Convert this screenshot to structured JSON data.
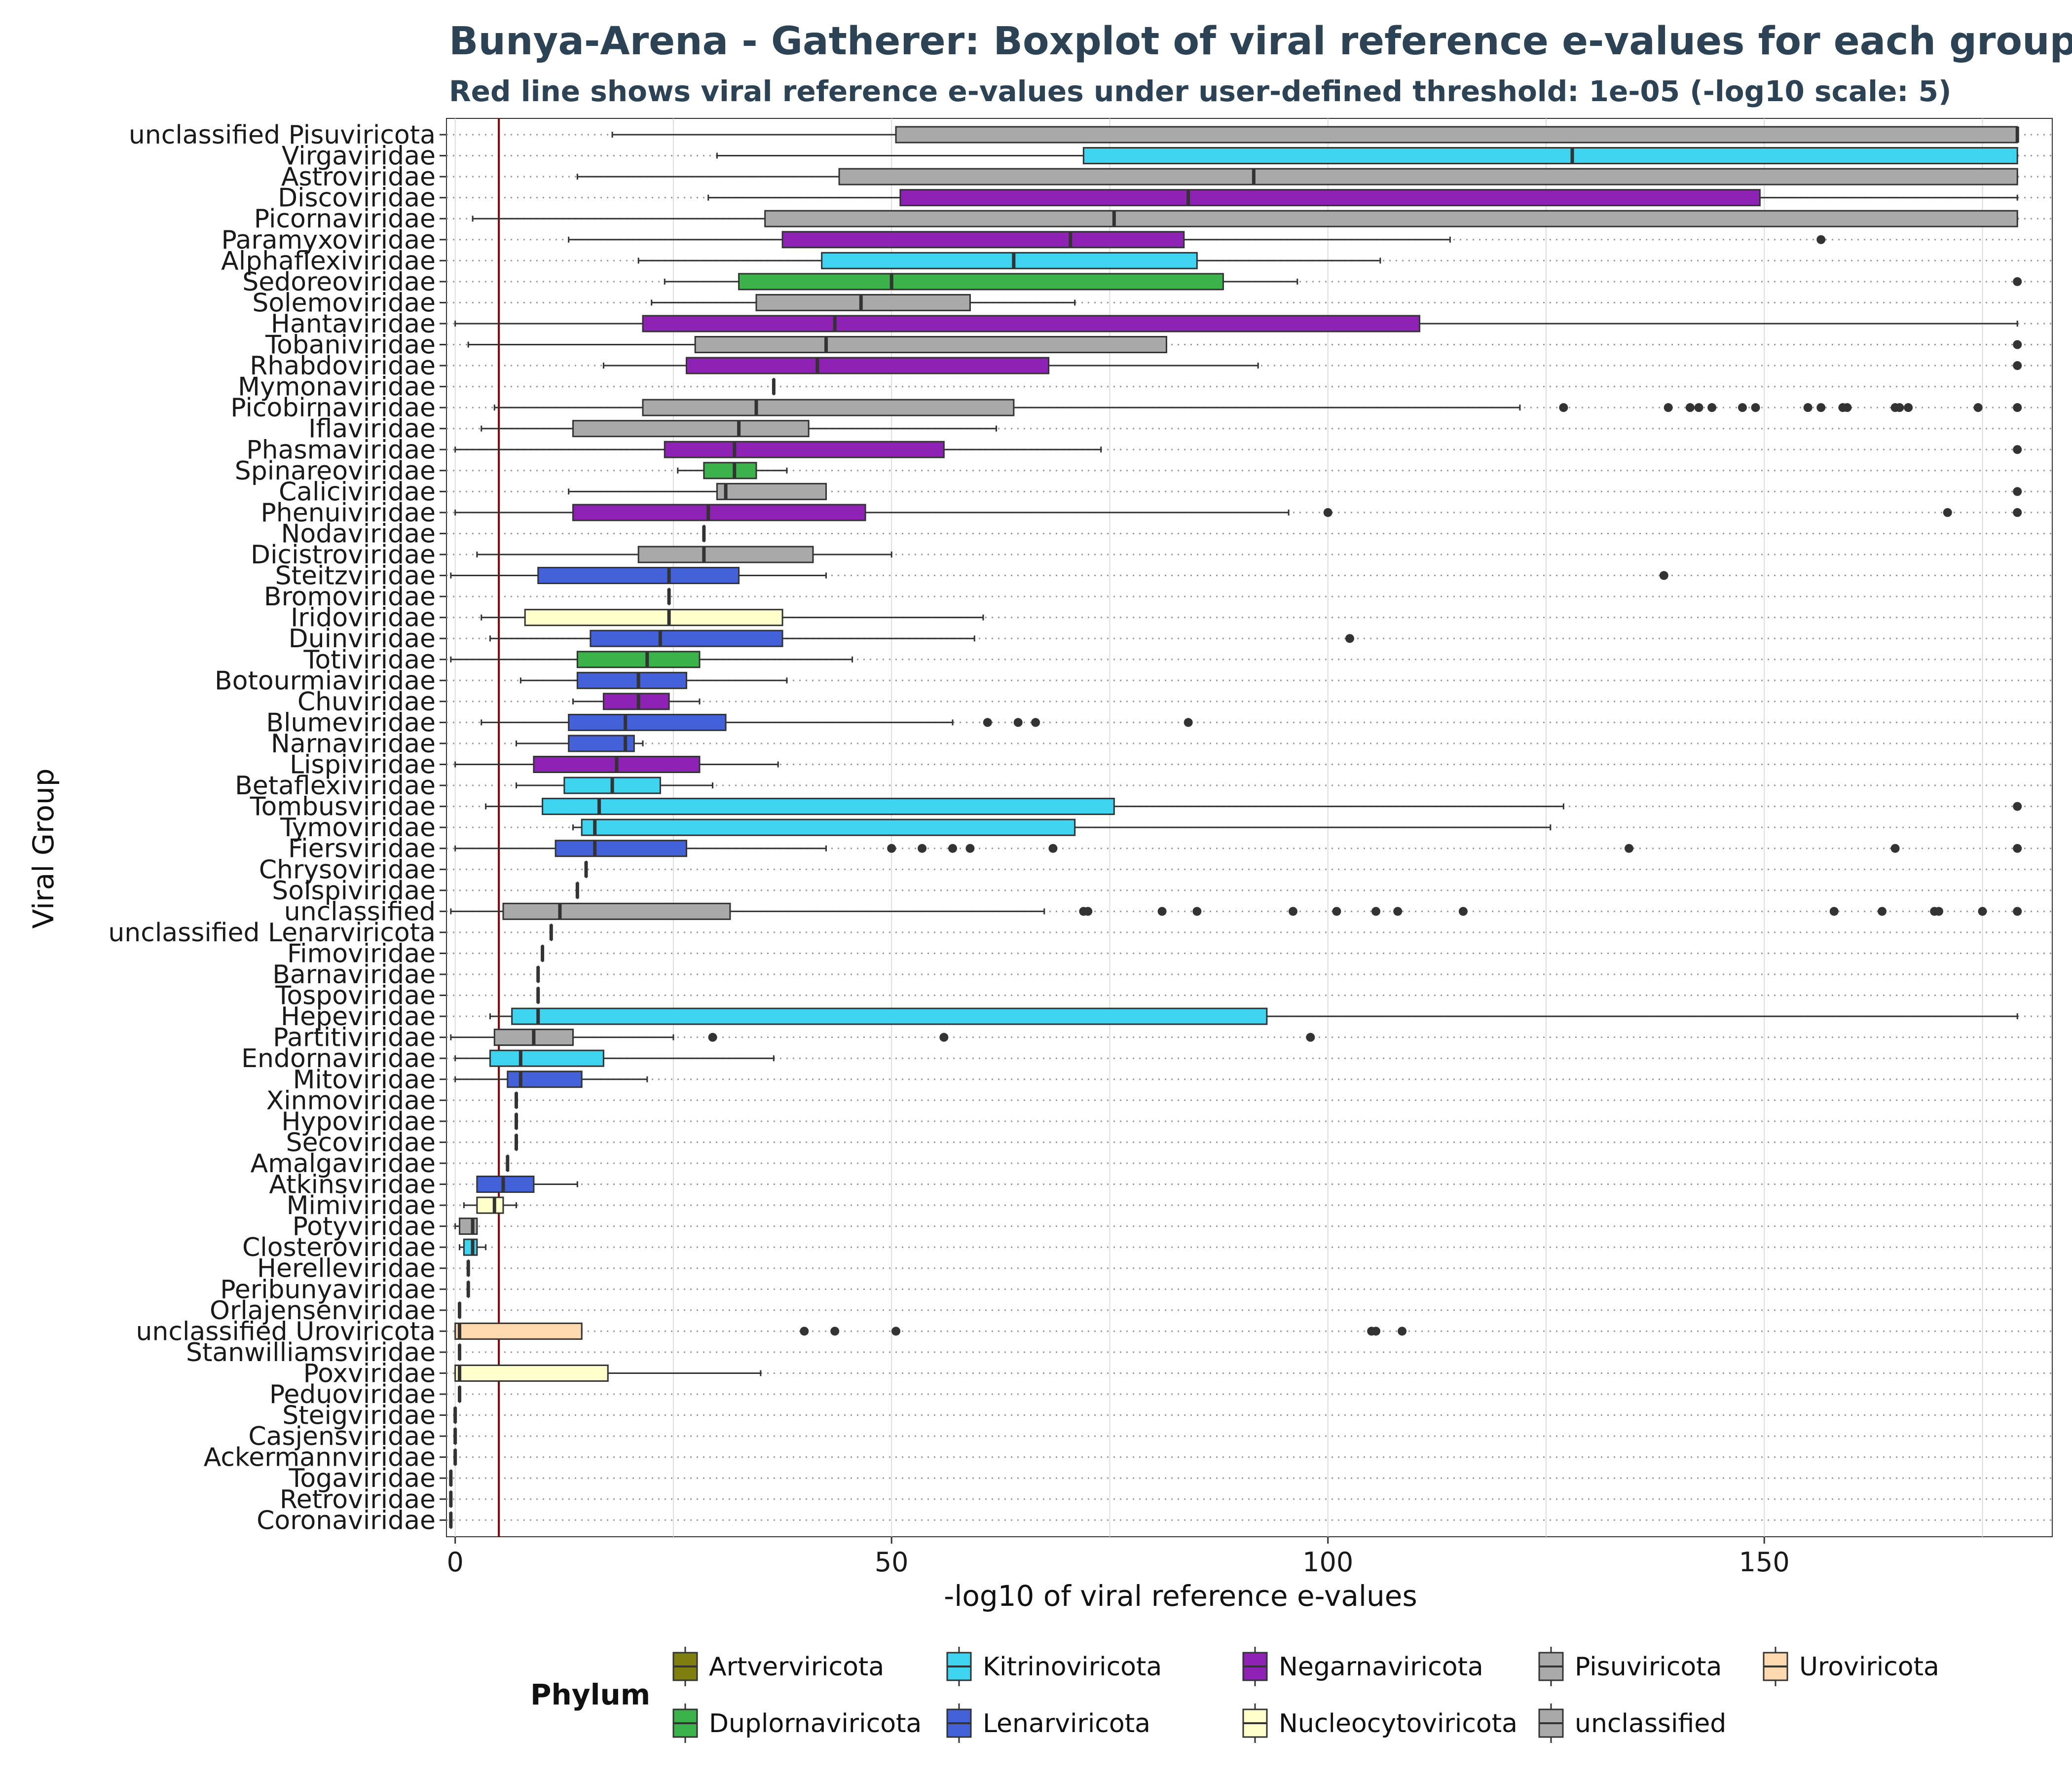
{
  "chart_data": {
    "type": "boxplot",
    "title": "Bunya-Arena - Gatherer: Boxplot of viral reference e-values for each group",
    "subtitle": "Red line shows viral reference e-values under user-defined threshold: 1e-05 (-log10 scale: 5)",
    "xlabel": "-log10 of viral reference e-values",
    "ylabel": "Viral Group",
    "xlim": [
      -1,
      183
    ],
    "x_ticks": [
      0,
      50,
      100,
      150
    ],
    "x_tick_labels": [
      "0",
      "50",
      "100",
      "150"
    ],
    "threshold": 5,
    "grid": true,
    "legend": {
      "title": "Phylum",
      "position": "bottom",
      "entries": [
        {
          "name": "Artverviricota",
          "color": "#7f7f0f"
        },
        {
          "name": "Duplornaviricota",
          "color": "#3cb34a"
        },
        {
          "name": "Kitrinoviricota",
          "color": "#3ed3ef"
        },
        {
          "name": "Lenarviricota",
          "color": "#4361d8"
        },
        {
          "name": "Negarnaviricota",
          "color": "#8e22b4"
        },
        {
          "name": "Nucleocytoviricota",
          "color": "#ffffcc"
        },
        {
          "name": "Pisuviricota",
          "color": "#a9a9a9"
        },
        {
          "name": "unclassified",
          "color": "#a9a9a9"
        },
        {
          "name": "Uroviricota",
          "color": "#ffdab0"
        }
      ]
    },
    "groups": [
      {
        "name": "unclassified Pisuviricota",
        "phylum": "Pisuviricota",
        "min": 18,
        "q1": 50.5,
        "median": 179,
        "q3": 179,
        "max": 179,
        "outliers": []
      },
      {
        "name": "Virgaviridae",
        "phylum": "Kitrinoviricota",
        "min": 30,
        "q1": 72,
        "median": 128,
        "q3": 179,
        "max": 179,
        "outliers": []
      },
      {
        "name": "Astroviridae",
        "phylum": "Pisuviricota",
        "min": 14,
        "q1": 44,
        "median": 91.5,
        "q3": 179,
        "max": 179,
        "outliers": []
      },
      {
        "name": "Discoviridae",
        "phylum": "Negarnaviricota",
        "min": 29,
        "q1": 51,
        "median": 84,
        "q3": 149.5,
        "max": 179,
        "outliers": []
      },
      {
        "name": "Picornaviridae",
        "phylum": "Pisuviricota",
        "min": 2,
        "q1": 35.5,
        "median": 75.5,
        "q3": 179,
        "max": 179,
        "outliers": []
      },
      {
        "name": "Paramyxoviridae",
        "phylum": "Negarnaviricota",
        "min": 13,
        "q1": 37.5,
        "median": 70.5,
        "q3": 83.5,
        "max": 114,
        "outliers": [
          156.5
        ]
      },
      {
        "name": "Alphaflexiviridae",
        "phylum": "Kitrinoviricota",
        "min": 21,
        "q1": 42,
        "median": 64,
        "q3": 85,
        "max": 106,
        "outliers": []
      },
      {
        "name": "Sedoreoviridae",
        "phylum": "Duplornaviricota",
        "min": 24,
        "q1": 32.5,
        "median": 50,
        "q3": 88,
        "max": 96.5,
        "outliers": [
          179
        ]
      },
      {
        "name": "Solemoviridae",
        "phylum": "Pisuviricota",
        "min": 22.5,
        "q1": 34.5,
        "median": 46.5,
        "q3": 59,
        "max": 71,
        "outliers": []
      },
      {
        "name": "Hantaviridae",
        "phylum": "Negarnaviricota",
        "min": 0,
        "q1": 21.5,
        "median": 43.5,
        "q3": 110.5,
        "max": 179,
        "outliers": []
      },
      {
        "name": "Tobaniviridae",
        "phylum": "Pisuviricota",
        "min": 1.5,
        "q1": 27.5,
        "median": 42.5,
        "q3": 81.5,
        "max": 81.5,
        "outliers": [
          179
        ]
      },
      {
        "name": "Rhabdoviridae",
        "phylum": "Negarnaviricota",
        "min": 17,
        "q1": 26.5,
        "median": 41.5,
        "q3": 68,
        "max": 92,
        "outliers": [
          179
        ]
      },
      {
        "name": "Mymonaviridae",
        "phylum": "Negarnaviricota",
        "min": 36.5,
        "q1": 36.5,
        "median": 36.5,
        "q3": 36.5,
        "max": 36.5,
        "outliers": []
      },
      {
        "name": "Picobirnaviridae",
        "phylum": "Pisuviricota",
        "min": 4.5,
        "q1": 21.5,
        "median": 34.5,
        "q3": 64,
        "max": 122,
        "outliers": [
          127,
          139,
          141.5,
          142.5,
          144,
          147.5,
          149,
          155,
          156.5,
          159,
          159.5,
          165,
          165.5,
          166.5,
          174.5,
          179
        ]
      },
      {
        "name": "Iflaviridae",
        "phylum": "Pisuviricota",
        "min": 3,
        "q1": 13.5,
        "median": 32.5,
        "q3": 40.5,
        "max": 62,
        "outliers": []
      },
      {
        "name": "Phasmaviridae",
        "phylum": "Negarnaviricota",
        "min": 0,
        "q1": 24,
        "median": 32,
        "q3": 56,
        "max": 74,
        "outliers": [
          179
        ]
      },
      {
        "name": "Spinareoviridae",
        "phylum": "Duplornaviricota",
        "min": 25.5,
        "q1": 28.5,
        "median": 32,
        "q3": 34.5,
        "max": 38,
        "outliers": []
      },
      {
        "name": "Caliciviridae",
        "phylum": "Pisuviricota",
        "min": 13,
        "q1": 30,
        "median": 31,
        "q3": 42.5,
        "max": 42.5,
        "outliers": [
          179
        ]
      },
      {
        "name": "Phenuiviridae",
        "phylum": "Negarnaviricota",
        "min": 0,
        "q1": 13.5,
        "median": 29,
        "q3": 47,
        "max": 95.5,
        "outliers": [
          100,
          171,
          179
        ]
      },
      {
        "name": "Nodaviridae",
        "phylum": "Kitrinoviricota",
        "min": 28.5,
        "q1": 28.5,
        "median": 28.5,
        "q3": 28.5,
        "max": 28.5,
        "outliers": []
      },
      {
        "name": "Dicistroviridae",
        "phylum": "Pisuviricota",
        "min": 2.5,
        "q1": 21,
        "median": 28.5,
        "q3": 41,
        "max": 50,
        "outliers": []
      },
      {
        "name": "Steitzviridae",
        "phylum": "Lenarviricota",
        "min": -0.5,
        "q1": 9.5,
        "median": 24.5,
        "q3": 32.5,
        "max": 42.5,
        "outliers": [
          138.5
        ]
      },
      {
        "name": "Bromoviridae",
        "phylum": "Kitrinoviricota",
        "min": 24.5,
        "q1": 24.5,
        "median": 24.5,
        "q3": 24.5,
        "max": 24.5,
        "outliers": []
      },
      {
        "name": "Iridoviridae",
        "phylum": "Nucleocytoviricota",
        "min": 3,
        "q1": 8,
        "median": 24.5,
        "q3": 37.5,
        "max": 60.5,
        "outliers": []
      },
      {
        "name": "Duinviridae",
        "phylum": "Lenarviricota",
        "min": 4,
        "q1": 15.5,
        "median": 23.5,
        "q3": 37.5,
        "max": 59.5,
        "outliers": [
          102.5
        ]
      },
      {
        "name": "Totiviridae",
        "phylum": "Duplornaviricota",
        "min": -0.5,
        "q1": 14,
        "median": 22,
        "q3": 28,
        "max": 45.5,
        "outliers": []
      },
      {
        "name": "Botourmiaviridae",
        "phylum": "Lenarviricota",
        "min": 7.5,
        "q1": 14,
        "median": 21,
        "q3": 26.5,
        "max": 38,
        "outliers": []
      },
      {
        "name": "Chuviridae",
        "phylum": "Negarnaviricota",
        "min": 13.5,
        "q1": 17,
        "median": 21,
        "q3": 24.5,
        "max": 28,
        "outliers": []
      },
      {
        "name": "Blumeviridae",
        "phylum": "Lenarviricota",
        "min": 3,
        "q1": 13,
        "median": 19.5,
        "q3": 31,
        "max": 57,
        "outliers": [
          61,
          64.5,
          66.5,
          84
        ]
      },
      {
        "name": "Narnaviridae",
        "phylum": "Lenarviricota",
        "min": 7,
        "q1": 13,
        "median": 19.5,
        "q3": 20.5,
        "max": 21.5,
        "outliers": []
      },
      {
        "name": "Lispiviridae",
        "phylum": "Negarnaviricota",
        "min": 0,
        "q1": 9,
        "median": 18.5,
        "q3": 28,
        "max": 37,
        "outliers": []
      },
      {
        "name": "Betaflexiviridae",
        "phylum": "Kitrinoviricota",
        "min": 7,
        "q1": 12.5,
        "median": 18,
        "q3": 23.5,
        "max": 29.5,
        "outliers": []
      },
      {
        "name": "Tombusviridae",
        "phylum": "Kitrinoviricota",
        "min": 3.5,
        "q1": 10,
        "median": 16.5,
        "q3": 75.5,
        "max": 127,
        "outliers": [
          179
        ]
      },
      {
        "name": "Tymoviridae",
        "phylum": "Kitrinoviricota",
        "min": 13.5,
        "q1": 14.5,
        "median": 16,
        "q3": 71,
        "max": 125.5,
        "outliers": []
      },
      {
        "name": "Fiersviridae",
        "phylum": "Lenarviricota",
        "min": 0,
        "q1": 11.5,
        "median": 16,
        "q3": 26.5,
        "max": 42.5,
        "outliers": [
          50,
          53.5,
          57,
          59,
          68.5,
          134.5,
          165,
          179
        ]
      },
      {
        "name": "Chrysoviridae",
        "phylum": "Duplornaviricota",
        "min": 15,
        "q1": 15,
        "median": 15,
        "q3": 15,
        "max": 15,
        "outliers": []
      },
      {
        "name": "Solspiviridae",
        "phylum": "Lenarviricota",
        "min": 14,
        "q1": 14,
        "median": 14,
        "q3": 14,
        "max": 14,
        "outliers": []
      },
      {
        "name": "unclassified",
        "phylum": "unclassified",
        "min": -0.5,
        "q1": 5.5,
        "median": 12,
        "q3": 31.5,
        "max": 67.5,
        "outliers": [
          72,
          72.5,
          81,
          85,
          96,
          101,
          105.5,
          108,
          115.5,
          158,
          163.5,
          169.5,
          170,
          175,
          179
        ]
      },
      {
        "name": "unclassified Lenarviricota",
        "phylum": "Lenarviricota",
        "min": 11,
        "q1": 11,
        "median": 11,
        "q3": 11,
        "max": 11,
        "outliers": []
      },
      {
        "name": "Fimoviridae",
        "phylum": "Negarnaviricota",
        "min": 10,
        "q1": 10,
        "median": 10,
        "q3": 10,
        "max": 10,
        "outliers": []
      },
      {
        "name": "Barnaviridae",
        "phylum": "Pisuviricota",
        "min": 9.5,
        "q1": 9.5,
        "median": 9.5,
        "q3": 9.5,
        "max": 9.5,
        "outliers": []
      },
      {
        "name": "Tospoviridae",
        "phylum": "Negarnaviricota",
        "min": 9.5,
        "q1": 9.5,
        "median": 9.5,
        "q3": 9.5,
        "max": 9.5,
        "outliers": []
      },
      {
        "name": "Hepeviridae",
        "phylum": "Kitrinoviricota",
        "min": 4,
        "q1": 6.5,
        "median": 9.5,
        "q3": 93,
        "max": 179,
        "outliers": []
      },
      {
        "name": "Partitiviridae",
        "phylum": "Pisuviricota",
        "min": -0.5,
        "q1": 4.5,
        "median": 9,
        "q3": 13.5,
        "max": 25,
        "outliers": [
          29.5,
          56,
          98
        ]
      },
      {
        "name": "Endornaviridae",
        "phylum": "Kitrinoviricota",
        "min": 0,
        "q1": 4,
        "median": 7.5,
        "q3": 17,
        "max": 36.5,
        "outliers": []
      },
      {
        "name": "Mitoviridae",
        "phylum": "Lenarviricota",
        "min": 0,
        "q1": 6,
        "median": 7.5,
        "q3": 14.5,
        "max": 22,
        "outliers": []
      },
      {
        "name": "Xinmoviridae",
        "phylum": "Negarnaviricota",
        "min": 7,
        "q1": 7,
        "median": 7,
        "q3": 7,
        "max": 7,
        "outliers": []
      },
      {
        "name": "Hypoviridae",
        "phylum": "Kitrinoviricota",
        "min": 7,
        "q1": 7,
        "median": 7,
        "q3": 7,
        "max": 7,
        "outliers": []
      },
      {
        "name": "Secoviridae",
        "phylum": "Pisuviricota",
        "min": 7,
        "q1": 7,
        "median": 7,
        "q3": 7,
        "max": 7,
        "outliers": []
      },
      {
        "name": "Amalgaviridae",
        "phylum": "Pisuviricota",
        "min": 6,
        "q1": 6,
        "median": 6,
        "q3": 6,
        "max": 6,
        "outliers": []
      },
      {
        "name": "Atkinsviridae",
        "phylum": "Lenarviricota",
        "min": 2.5,
        "q1": 2.5,
        "median": 5.5,
        "q3": 9,
        "max": 14,
        "outliers": []
      },
      {
        "name": "Mimiviridae",
        "phylum": "Nucleocytoviricota",
        "min": 1,
        "q1": 2.5,
        "median": 4.5,
        "q3": 5.5,
        "max": 7,
        "outliers": []
      },
      {
        "name": "Potyviridae",
        "phylum": "Pisuviricota",
        "min": 0,
        "q1": 0.5,
        "median": 2,
        "q3": 2.5,
        "max": 2.5,
        "outliers": []
      },
      {
        "name": "Closteroviridae",
        "phylum": "Kitrinoviricota",
        "min": 0.5,
        "q1": 1,
        "median": 2,
        "q3": 2.5,
        "max": 3.5,
        "outliers": []
      },
      {
        "name": "Herelleviridae",
        "phylum": "Uroviricota",
        "min": 1.5,
        "q1": 1.5,
        "median": 1.5,
        "q3": 1.5,
        "max": 1.5,
        "outliers": []
      },
      {
        "name": "Peribunyaviridae",
        "phylum": "Negarnaviricota",
        "min": 1.5,
        "q1": 1.5,
        "median": 1.5,
        "q3": 1.5,
        "max": 1.5,
        "outliers": []
      },
      {
        "name": "Orlajensenviridae",
        "phylum": "Uroviricota",
        "min": 0.5,
        "q1": 0.5,
        "median": 0.5,
        "q3": 0.5,
        "max": 0.5,
        "outliers": []
      },
      {
        "name": "unclassified Uroviricota",
        "phylum": "Uroviricota",
        "min": 0,
        "q1": 0,
        "median": 0.5,
        "q3": 14.5,
        "max": 14.5,
        "outliers": [
          40,
          43.5,
          50.5,
          105,
          105.5,
          108.5
        ]
      },
      {
        "name": "Stanwilliamsviridae",
        "phylum": "Uroviricota",
        "min": 0.5,
        "q1": 0.5,
        "median": 0.5,
        "q3": 0.5,
        "max": 0.5,
        "outliers": []
      },
      {
        "name": "Poxviridae",
        "phylum": "Nucleocytoviricota",
        "min": 0,
        "q1": 0,
        "median": 0.5,
        "q3": 17.5,
        "max": 35,
        "outliers": []
      },
      {
        "name": "Peduoviridae",
        "phylum": "Uroviricota",
        "min": 0.5,
        "q1": 0.5,
        "median": 0.5,
        "q3": 0.5,
        "max": 0.5,
        "outliers": []
      },
      {
        "name": "Steigviridae",
        "phylum": "Uroviricota",
        "min": 0,
        "q1": 0,
        "median": 0,
        "q3": 0,
        "max": 0,
        "outliers": []
      },
      {
        "name": "Casjensviridae",
        "phylum": "Uroviricota",
        "min": 0,
        "q1": 0,
        "median": 0,
        "q3": 0,
        "max": 0,
        "outliers": []
      },
      {
        "name": "Ackermannviridae",
        "phylum": "Uroviricota",
        "min": 0,
        "q1": 0,
        "median": 0,
        "q3": 0,
        "max": 0,
        "outliers": []
      },
      {
        "name": "Togaviridae",
        "phylum": "Kitrinoviricota",
        "min": -0.5,
        "q1": -0.5,
        "median": -0.5,
        "q3": -0.5,
        "max": -0.5,
        "outliers": []
      },
      {
        "name": "Retroviridae",
        "phylum": "Artverviricota",
        "min": -0.5,
        "q1": -0.5,
        "median": -0.5,
        "q3": -0.5,
        "max": -0.5,
        "outliers": []
      },
      {
        "name": "Coronaviridae",
        "phylum": "Pisuviricota",
        "min": -0.5,
        "q1": -0.5,
        "median": -0.5,
        "q3": -0.5,
        "max": -0.5,
        "outliers": []
      }
    ]
  }
}
